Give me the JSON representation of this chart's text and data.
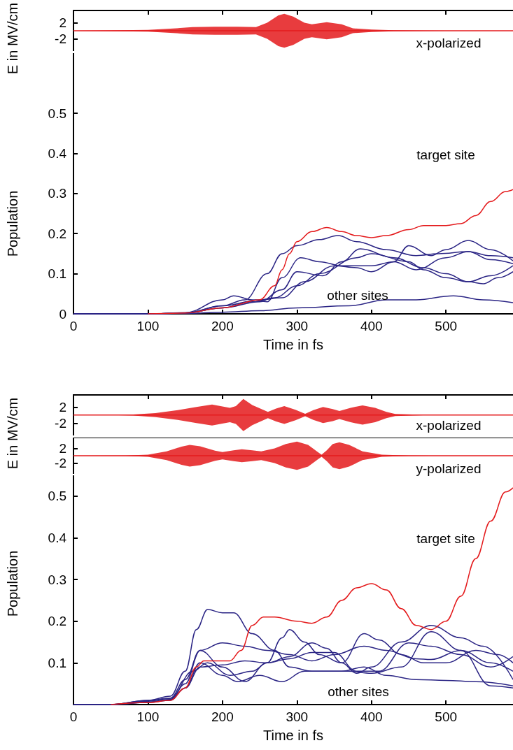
{
  "chart_data": [
    {
      "type": "line",
      "ylabel": "E in MV/cm",
      "xlim": [
        0,
        590
      ],
      "xticks": [
        0,
        100,
        200,
        300,
        400,
        500
      ],
      "ylim": [
        -5,
        5
      ],
      "yticks": [
        2,
        -2
      ],
      "tick_labels": "y",
      "annotations": [
        "x-polarized"
      ],
      "series": [
        {
          "color": "#e41a1c",
          "x": [
            0,
            20,
            100,
            130,
            160,
            190,
            220,
            245,
            260,
            275,
            283,
            295,
            310,
            320,
            340,
            360,
            375,
            400,
            430,
            470,
            500,
            590
          ],
          "values": [
            0,
            0,
            0,
            0,
            0,
            0,
            0,
            0,
            0,
            0,
            0,
            0,
            0,
            0,
            0,
            0,
            0,
            0,
            0,
            0,
            0,
            0
          ],
          "upper": [
            0,
            0.05,
            0.2,
            0.5,
            0.9,
            1.0,
            1.0,
            0.9,
            2,
            3.8,
            4.2,
            3.5,
            2,
            1.6,
            2.1,
            1.6,
            0.6,
            0.3,
            0.15,
            0.05,
            0,
            0
          ],
          "lower": [
            0,
            -0.05,
            -0.2,
            -0.5,
            -0.9,
            -1.0,
            -1.0,
            -0.9,
            -2,
            -3.8,
            -4.2,
            -3.5,
            -2,
            -1.6,
            -2.1,
            -1.6,
            -0.6,
            -0.3,
            -0.15,
            -0.05,
            0,
            0
          ]
        }
      ]
    },
    {
      "type": "line",
      "xlabel": "Time in fs",
      "ylabel": "Population",
      "xlim": [
        0,
        590
      ],
      "xticks": [
        0,
        100,
        200,
        300,
        400,
        500
      ],
      "ylim": [
        0,
        0.65
      ],
      "yticks": [
        0,
        0.1,
        0.2,
        0.3,
        0.4,
        0.5
      ],
      "annotations": [
        "target site",
        "other sites"
      ],
      "series": [
        {
          "color": "#2b2585",
          "x": [
            0,
            100,
            150,
            200,
            230,
            260,
            280,
            300,
            330,
            355,
            380,
            420,
            460,
            490,
            530,
            560,
            590
          ],
          "values": [
            0,
            0,
            0.002,
            0.02,
            0.035,
            0.1,
            0.15,
            0.17,
            0.185,
            0.195,
            0.18,
            0.16,
            0.145,
            0.15,
            0.155,
            0.145,
            0.14
          ]
        },
        {
          "color": "#2b2585",
          "x": [
            0,
            100,
            150,
            200,
            215,
            240,
            260,
            280,
            305,
            330,
            360,
            400,
            430,
            460,
            500,
            530,
            560,
            590
          ],
          "values": [
            0,
            0,
            0.003,
            0.035,
            0.045,
            0.035,
            0.03,
            0.09,
            0.14,
            0.13,
            0.12,
            0.12,
            0.13,
            0.11,
            0.14,
            0.155,
            0.135,
            0.125
          ]
        },
        {
          "color": "#2b2585",
          "x": [
            0,
            100,
            150,
            200,
            250,
            280,
            300,
            335,
            360,
            385,
            430,
            470,
            500,
            530,
            560,
            590
          ],
          "values": [
            0,
            0,
            0.002,
            0.015,
            0.03,
            0.06,
            0.105,
            0.095,
            0.13,
            0.162,
            0.14,
            0.115,
            0.1,
            0.08,
            0.095,
            0.12
          ]
        },
        {
          "color": "#2b2585",
          "x": [
            0,
            100,
            150,
            200,
            250,
            280,
            310,
            350,
            380,
            400,
            430,
            450,
            480,
            500,
            530,
            560,
            590
          ],
          "values": [
            0,
            0,
            0.002,
            0.02,
            0.035,
            0.04,
            0.08,
            0.12,
            0.115,
            0.105,
            0.13,
            0.17,
            0.145,
            0.16,
            0.183,
            0.16,
            0.132
          ]
        },
        {
          "color": "#2b2585",
          "x": [
            0,
            100,
            150,
            200,
            240,
            270,
            300,
            330,
            380,
            400,
            450,
            470,
            500,
            530,
            550,
            570,
            590
          ],
          "values": [
            0,
            0,
            0.002,
            0.015,
            0.03,
            0.04,
            0.07,
            0.1,
            0.14,
            0.15,
            0.13,
            0.11,
            0.09,
            0.08,
            0.075,
            0.09,
            0.105
          ]
        },
        {
          "color": "#2b2585",
          "x": [
            0,
            100,
            150,
            200,
            250,
            300,
            370,
            420,
            460,
            510,
            550,
            590
          ],
          "values": [
            0,
            0,
            0.001,
            0.004,
            0.008,
            0.015,
            0.02,
            0.035,
            0.035,
            0.045,
            0.035,
            0.028
          ]
        },
        {
          "color": "#e41a1c",
          "x": [
            100,
            150,
            200,
            250,
            270,
            280,
            290,
            300,
            320,
            340,
            360,
            380,
            400,
            420,
            450,
            470,
            500,
            520,
            540,
            560,
            580,
            590
          ],
          "values": [
            0,
            0.002,
            0.015,
            0.035,
            0.07,
            0.11,
            0.15,
            0.18,
            0.205,
            0.215,
            0.205,
            0.195,
            0.19,
            0.195,
            0.21,
            0.22,
            0.22,
            0.225,
            0.245,
            0.28,
            0.305,
            0.31
          ]
        }
      ]
    },
    {
      "type": "line",
      "ylabel": "E in MV/cm",
      "xlim": [
        0,
        590
      ],
      "xticks": [
        0,
        100,
        200,
        300,
        400,
        500
      ],
      "ylim": [
        -5,
        5
      ],
      "yticks": [
        2,
        -2
      ],
      "tick_labels": "y",
      "annotations": [
        "x-polarized"
      ],
      "series": [
        {
          "color": "#e41a1c",
          "x": [
            0,
            60,
            80,
            110,
            140,
            165,
            186,
            210,
            218,
            228,
            240,
            261,
            272,
            283,
            298,
            311,
            322,
            335,
            348,
            357,
            372,
            388,
            405,
            420,
            432,
            470,
            500,
            590
          ],
          "values": [
            0,
            0,
            0,
            0,
            0,
            0,
            0,
            0,
            0,
            0,
            0,
            0,
            0,
            0,
            0,
            0,
            0,
            0,
            0,
            0,
            0,
            0,
            0,
            0,
            0,
            0,
            0,
            0
          ],
          "upper": [
            0,
            0.05,
            0.15,
            0.5,
            1.2,
            2.0,
            2.6,
            1.8,
            2.2,
            4.0,
            2.5,
            0.8,
            1.6,
            2.2,
            1.3,
            0.3,
            1.2,
            2.0,
            1.5,
            1.0,
            1.8,
            2.4,
            1.8,
            0.8,
            0.25,
            0.05,
            0,
            0
          ],
          "lower": [
            0,
            -0.05,
            -0.15,
            -0.5,
            -1.2,
            -2.0,
            -2.6,
            -1.8,
            -2.2,
            -4.0,
            -2.5,
            -0.8,
            -1.6,
            -2.2,
            -1.3,
            -0.3,
            -1.2,
            -2.0,
            -1.5,
            -1.0,
            -1.8,
            -2.4,
            -1.8,
            -0.8,
            -0.25,
            -0.05,
            0,
            0
          ]
        }
      ]
    },
    {
      "type": "line",
      "xlim": [
        0,
        590
      ],
      "ylim": [
        -5,
        5
      ],
      "yticks": [
        2,
        -2
      ],
      "tick_labels": "y",
      "annotations": [
        "y-polarized"
      ],
      "series": [
        {
          "color": "#e41a1c",
          "x": [
            0,
            70,
            100,
            125,
            145,
            156,
            170,
            190,
            200,
            215,
            226,
            240,
            252,
            270,
            285,
            300,
            315,
            328,
            333,
            340,
            348,
            357,
            370,
            388,
            414,
            450,
            480,
            590
          ],
          "values": [
            0,
            0,
            0,
            0,
            0,
            0,
            0,
            0,
            0,
            0,
            0,
            0,
            0,
            0,
            0,
            0,
            0,
            0,
            0,
            0,
            0,
            0,
            0,
            0,
            0,
            0,
            0,
            0
          ],
          "upper": [
            0,
            0.05,
            0.3,
            1.2,
            2.5,
            3.0,
            2.6,
            1.4,
            1.0,
            1.5,
            1.8,
            1.5,
            1.2,
            2.0,
            3.2,
            3.9,
            3.0,
            1.0,
            0.3,
            1.5,
            3.2,
            3.7,
            3.0,
            1.2,
            0.3,
            0.05,
            0,
            0
          ],
          "lower": [
            0,
            -0.05,
            -0.3,
            -1.2,
            -2.5,
            -3.0,
            -2.6,
            -1.4,
            -1.0,
            -1.5,
            -1.8,
            -1.5,
            -1.2,
            -2.0,
            -3.2,
            -3.9,
            -3.0,
            -1.0,
            -0.3,
            -1.5,
            -3.2,
            -3.7,
            -3.0,
            -1.2,
            -0.3,
            -0.05,
            0,
            0
          ]
        }
      ]
    },
    {
      "type": "line",
      "xlabel": "Time in fs",
      "ylabel": "Population",
      "xlim": [
        0,
        590
      ],
      "xticks": [
        0,
        100,
        200,
        300,
        400,
        500
      ],
      "ylim": [
        0,
        0.55
      ],
      "yticks": [
        0.1,
        0.2,
        0.3,
        0.4,
        0.5
      ],
      "annotations": [
        "target site",
        "other sites"
      ],
      "series": [
        {
          "color": "#2b2585",
          "x": [
            0,
            50,
            100,
            130,
            150,
            165,
            180,
            200,
            215,
            240,
            270,
            290,
            320,
            360,
            390,
            420,
            460,
            500,
            540,
            590
          ],
          "values": [
            0,
            0,
            0.01,
            0.02,
            0.08,
            0.18,
            0.228,
            0.22,
            0.22,
            0.17,
            0.13,
            0.09,
            0.08,
            0.08,
            0.09,
            0.07,
            0.06,
            0.058,
            0.055,
            0.045
          ]
        },
        {
          "color": "#2b2585",
          "x": [
            0,
            50,
            100,
            130,
            150,
            170,
            200,
            230,
            260,
            290,
            320,
            350,
            390,
            420,
            460,
            480,
            520,
            560,
            590
          ],
          "values": [
            0,
            0,
            0.01,
            0.015,
            0.06,
            0.13,
            0.148,
            0.14,
            0.13,
            0.12,
            0.105,
            0.12,
            0.14,
            0.13,
            0.11,
            0.108,
            0.13,
            0.1,
            0.08
          ]
        },
        {
          "color": "#2b2585",
          "x": [
            0,
            50,
            100,
            130,
            160,
            180,
            210,
            240,
            260,
            280,
            290,
            310,
            330,
            360,
            390,
            410,
            440,
            470,
            500,
            540,
            570,
            590
          ],
          "values": [
            0,
            0,
            0.008,
            0.015,
            0.08,
            0.1,
            0.07,
            0.08,
            0.1,
            0.16,
            0.18,
            0.15,
            0.12,
            0.1,
            0.17,
            0.155,
            0.12,
            0.1,
            0.1,
            0.13,
            0.12,
            0.1
          ]
        },
        {
          "color": "#2b2585",
          "x": [
            0,
            50,
            100,
            130,
            150,
            170,
            200,
            230,
            260,
            290,
            320,
            340,
            360,
            380,
            400,
            440,
            480,
            520,
            550,
            590
          ],
          "values": [
            0,
            0,
            0.006,
            0.012,
            0.04,
            0.09,
            0.095,
            0.105,
            0.1,
            0.115,
            0.148,
            0.135,
            0.1,
            0.075,
            0.09,
            0.15,
            0.19,
            0.16,
            0.14,
            0.06
          ]
        },
        {
          "color": "#2b2585",
          "x": [
            0,
            50,
            100,
            130,
            150,
            170,
            200,
            230,
            260,
            290,
            320,
            350,
            380,
            410,
            450,
            480,
            520,
            560,
            590
          ],
          "values": [
            0,
            0,
            0.006,
            0.012,
            0.05,
            0.13,
            0.09,
            0.055,
            0.1,
            0.11,
            0.125,
            0.125,
            0.08,
            0.08,
            0.148,
            0.14,
            0.12,
            0.09,
            0.115
          ]
        },
        {
          "color": "#2b2585",
          "x": [
            0,
            50,
            100,
            130,
            150,
            170,
            200,
            220,
            250,
            280,
            310,
            340,
            370,
            400,
            440,
            480,
            520,
            560,
            590
          ],
          "values": [
            0,
            0,
            0.005,
            0.01,
            0.04,
            0.1,
            0.07,
            0.055,
            0.07,
            0.055,
            0.08,
            0.08,
            0.08,
            0.075,
            0.09,
            0.175,
            0.13,
            0.045,
            0.04
          ]
        },
        {
          "color": "#e41a1c",
          "x": [
            50,
            100,
            130,
            150,
            165,
            175,
            190,
            210,
            225,
            240,
            255,
            270,
            300,
            320,
            340,
            360,
            380,
            400,
            420,
            440,
            460,
            480,
            500,
            520,
            540,
            560,
            580,
            590
          ],
          "values": [
            0,
            0.005,
            0.01,
            0.04,
            0.09,
            0.105,
            0.105,
            0.105,
            0.13,
            0.19,
            0.21,
            0.21,
            0.2,
            0.195,
            0.21,
            0.25,
            0.28,
            0.29,
            0.275,
            0.23,
            0.19,
            0.18,
            0.2,
            0.26,
            0.35,
            0.44,
            0.51,
            0.52
          ]
        }
      ]
    }
  ]
}
